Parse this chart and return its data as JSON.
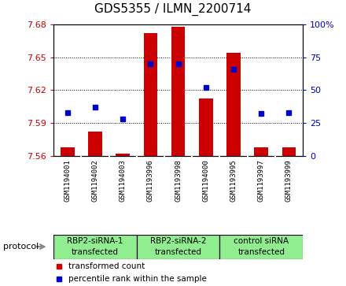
{
  "title": "GDS5355 / ILMN_2200714",
  "samples": [
    "GSM1194001",
    "GSM1194002",
    "GSM1194003",
    "GSM1193996",
    "GSM1193998",
    "GSM1194000",
    "GSM1193995",
    "GSM1193997",
    "GSM1193999"
  ],
  "red_values": [
    7.568,
    7.582,
    7.562,
    7.672,
    7.678,
    7.612,
    7.654,
    7.568,
    7.568
  ],
  "blue_values": [
    33,
    37,
    28,
    70,
    70,
    52,
    66,
    32,
    33
  ],
  "ymin": 7.56,
  "ymax": 7.68,
  "yticks": [
    7.56,
    7.59,
    7.62,
    7.65,
    7.68
  ],
  "right_yticks": [
    0,
    25,
    50,
    75,
    100
  ],
  "group_labels": [
    "RBP2-siRNA-1\ntransfected",
    "RBP2-siRNA-2\ntransfected",
    "control siRNA\ntransfected"
  ],
  "group_ranges": [
    [
      1,
      3
    ],
    [
      4,
      6
    ],
    [
      7,
      9
    ]
  ],
  "group_color": "#90EE90",
  "sample_bg_color": "#D3D3D3",
  "bar_color": "#CC0000",
  "dot_color": "#0000CC",
  "bar_width": 0.5,
  "legend_red": "transformed count",
  "legend_blue": "percentile rank within the sample"
}
